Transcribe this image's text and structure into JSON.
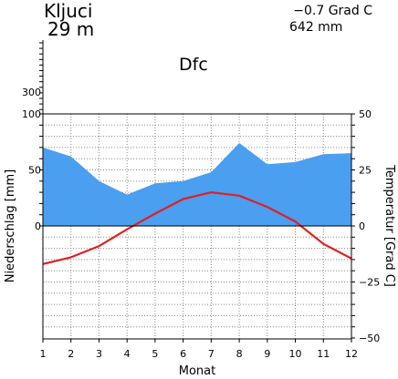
{
  "header": {
    "station": "Kljuci",
    "elevation": "29 m",
    "mean_temperature": "−0.7 Grad C",
    "annual_precipitation": "642 mm",
    "climate_class": "Dfc"
  },
  "chart_data": {
    "type": "line",
    "title": "",
    "xlabel": "Monat",
    "ylabel_left": "Niederschlag [mm]",
    "ylabel_right": "Temperatur [Grad C]",
    "x": [
      1,
      2,
      3,
      4,
      5,
      6,
      7,
      8,
      9,
      10,
      11,
      12
    ],
    "x_tick_labels": [
      "1",
      "2",
      "3",
      "4",
      "5",
      "6",
      "7",
      "8",
      "9",
      "10",
      "11",
      "12"
    ],
    "y_left_ticks": [
      "0",
      "50",
      "100",
      "300"
    ],
    "y_right_ticks": [
      "−50",
      "−25",
      "0",
      "25",
      "50"
    ],
    "ylim_right": [
      -50,
      50
    ],
    "grid": true,
    "series": [
      {
        "kind": "area",
        "axis": "left",
        "color": "#4a9ff0",
        "values": [
          70,
          62,
          40,
          28,
          38,
          40,
          48,
          74,
          55,
          57,
          64,
          65
        ]
      },
      {
        "kind": "line",
        "axis": "right",
        "color": "#e02020",
        "values": [
          -17,
          -14,
          -9,
          -1.5,
          5.5,
          12,
          15,
          13.5,
          8.5,
          2,
          -8,
          -14.5
        ]
      }
    ]
  }
}
